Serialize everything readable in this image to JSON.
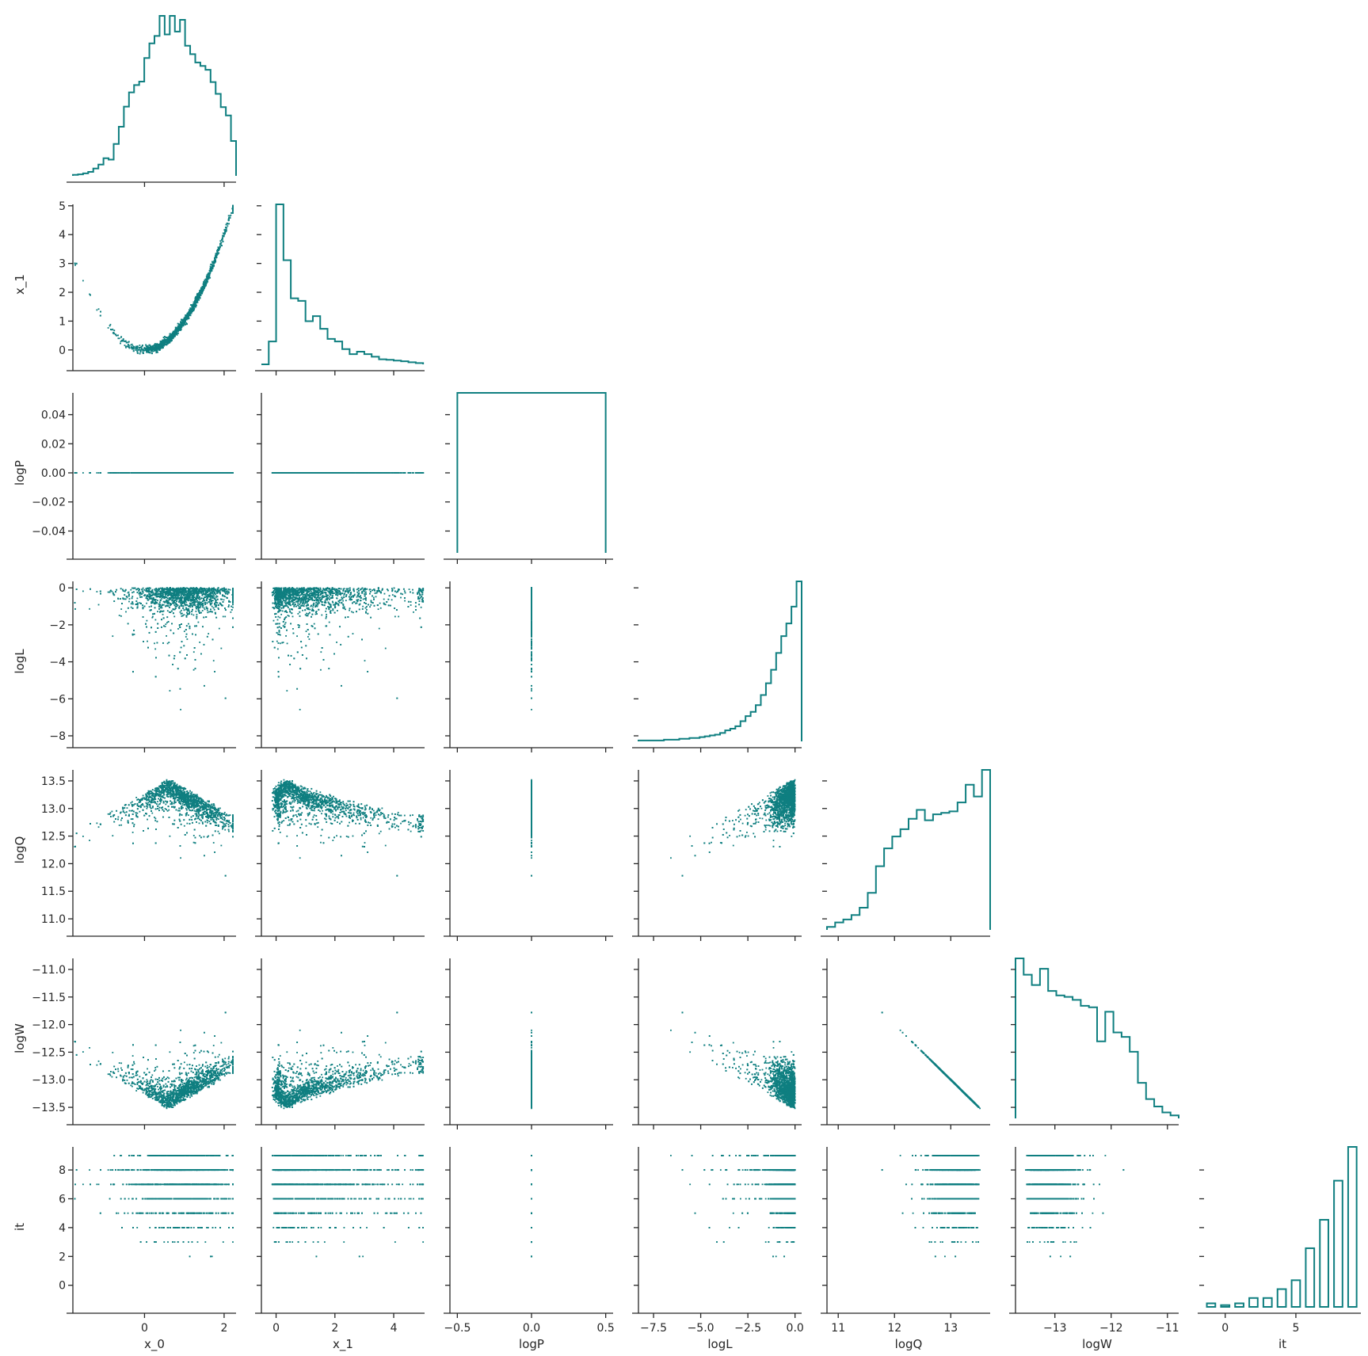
{
  "colors": {
    "series": "#0f7f80",
    "axis": "#262626"
  },
  "chart_data": {
    "type": "pairplot-corner",
    "variables": [
      "x_0",
      "x_1",
      "logP",
      "logL",
      "logQ",
      "logW",
      "it"
    ],
    "legend": "none",
    "grid": false,
    "axes": {
      "x_0": {
        "range": [
          -1.8,
          2.3
        ],
        "ticks": [
          0,
          2
        ],
        "tick_labels": [
          "0",
          "2"
        ]
      },
      "x_1": {
        "range": [
          -0.5,
          5.05
        ],
        "ticks": [
          0,
          1,
          2,
          3,
          4,
          5
        ],
        "tick_labels": [
          "0",
          "1",
          "2",
          "3",
          "4",
          "5"
        ],
        "x_ticks": [
          0,
          2,
          4
        ],
        "x_tick_labels": [
          "0",
          "2",
          "4"
        ]
      },
      "logP": {
        "range": [
          -0.055,
          0.055
        ],
        "ticks": [
          -0.04,
          -0.02,
          0.0,
          0.02,
          0.04
        ],
        "tick_labels": [
          "−0.04",
          "−0.02",
          "0.00",
          "0.02",
          "0.04"
        ],
        "x_range": [
          -0.55,
          0.55
        ],
        "x_ticks": [
          -0.5,
          0.0,
          0.5
        ],
        "x_tick_labels": [
          "−0.5",
          "0.0",
          "0.5"
        ]
      },
      "logL": {
        "range": [
          -8.3,
          0.35
        ],
        "ticks": [
          -8,
          -6,
          -4,
          -2,
          0
        ],
        "tick_labels": [
          "−8",
          "−6",
          "−4",
          "−2",
          "0"
        ],
        "x_ticks": [
          -7.5,
          -5.0,
          -2.5,
          0.0
        ],
        "x_tick_labels": [
          "−7.5",
          "−5.0",
          "−2.5",
          "0.0"
        ]
      },
      "logQ": {
        "range": [
          10.8,
          13.7
        ],
        "ticks": [
          11.0,
          11.5,
          12.0,
          12.5,
          13.0,
          13.5
        ],
        "tick_labels": [
          "11.0",
          "11.5",
          "12.0",
          "12.5",
          "13.0",
          "13.5"
        ],
        "x_ticks": [
          11,
          12,
          13
        ],
        "x_tick_labels": [
          "11",
          "12",
          "13"
        ]
      },
      "logW": {
        "range": [
          -13.7,
          -10.8
        ],
        "ticks": [
          -11.0,
          -11.5,
          -12.0,
          -12.5,
          -13.0,
          -13.5
        ],
        "tick_labels": [
          "−11.0",
          "−11.5",
          "−12.0",
          "−12.5",
          "−13.0",
          "−13.5"
        ],
        "x_ticks": [
          -13,
          -12,
          -11
        ],
        "x_tick_labels": [
          "−13",
          "−12",
          "−11"
        ]
      },
      "it": {
        "range": [
          -1.5,
          9.6
        ],
        "ticks": [
          0,
          2,
          4,
          6,
          8
        ],
        "tick_labels": [
          "0",
          "2",
          "4",
          "6",
          "8"
        ],
        "x_ticks": [
          0,
          5
        ],
        "x_tick_labels": [
          "0",
          "5"
        ]
      }
    },
    "histograms": {
      "x_0": {
        "edges": [
          -1.8,
          2.3
        ],
        "counts": [
          0.2,
          0.3,
          0.5,
          0.8,
          1.5,
          2.3,
          3.6,
          3.3,
          6.5,
          10.0,
          14.1,
          17.0,
          18.5,
          19.2,
          24.0,
          27.0,
          28.5,
          32.6,
          28.8,
          32.6,
          29.4,
          31.8,
          26.5,
          24.8,
          23.1,
          22.4,
          21.6,
          19.1,
          16.7,
          14.0,
          12.3,
          7.1
        ]
      },
      "x_1": {
        "edges": [
          -0.5,
          5.0
        ],
        "counts": [
          0,
          9,
          63,
          41,
          26,
          25,
          17,
          19,
          14,
          10,
          9,
          6,
          4,
          5,
          4,
          3,
          2,
          1.8,
          1.5,
          1.2,
          0.8,
          0.5
        ]
      },
      "logP": {
        "edges": [
          -0.5,
          0.5
        ],
        "counts": [
          1
        ]
      },
      "logL": {
        "edges": [
          -8.3,
          0.35
        ],
        "counts": [
          0.1,
          0.1,
          0.1,
          0.1,
          0.1,
          0.2,
          0.2,
          0.2,
          0.3,
          0.3,
          0.4,
          0.4,
          0.5,
          0.6,
          0.7,
          0.8,
          1.0,
          1.3,
          1.5,
          1.8,
          2.4,
          3.0,
          3.5,
          4.3,
          5.5,
          6.9,
          8.5,
          10.5,
          12.5,
          14.0,
          16.0,
          19.0
        ]
      },
      "logQ": {
        "edges": [
          10.8,
          13.7
        ],
        "counts": [
          0.2,
          0.5,
          0.7,
          1.0,
          1.5,
          2.5,
          4.3,
          5.5,
          6.3,
          6.8,
          7.5,
          8.1,
          7.4,
          7.8,
          7.9,
          8.0,
          8.6,
          9.8,
          9.0,
          10.8
        ]
      },
      "logW": {
        "edges": [
          -13.7,
          -10.8
        ],
        "counts": [
          10.8,
          9.7,
          9.0,
          10.1,
          8.6,
          8.3,
          8.2,
          8.0,
          7.6,
          7.5,
          5.2,
          7.2,
          5.8,
          5.5,
          4.5,
          2.4,
          1.3,
          0.8,
          0.4,
          0.2
        ]
      },
      "it": {
        "categories": [
          -1,
          0,
          1,
          2,
          3,
          4,
          5,
          6,
          7,
          8,
          9
        ],
        "counts": [
          0.2,
          0.1,
          0.2,
          0.5,
          0.5,
          1.0,
          1.5,
          3.3,
          4.9,
          7.1,
          9.0
        ]
      }
    },
    "scatter_relations": {
      "x_1_vs_x_0": "x_1 ≈ (x_0)² with noise",
      "logQ_vs_logW": "logQ ≈ −logW (perfect linear)",
      "logP": "constant 0.0",
      "it": "integer levels -1..9"
    }
  }
}
